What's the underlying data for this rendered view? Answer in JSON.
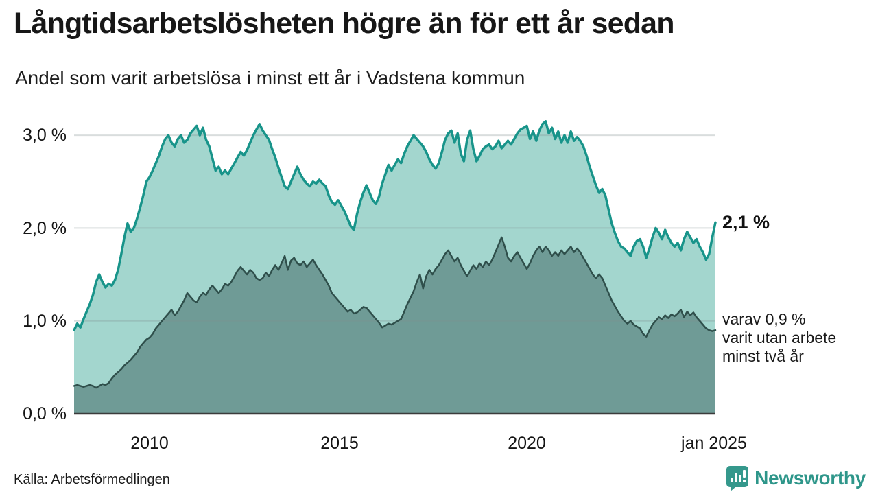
{
  "title": "Långtidsarbetslösheten högre än för ett år sedan",
  "subtitle": "Andel som varit arbetslösa i minst ett år i Vadstena kommun",
  "source": "Källa: Arbetsförmedlingen",
  "logo": {
    "text": "Newsworthy",
    "color": "#2e968a",
    "icon": "speech-bubble-bar-chart"
  },
  "annotations": {
    "end_value": "2,1 %",
    "secondary": [
      "varav 0,9 %",
      "varit utan arbete",
      "minst två år"
    ]
  },
  "colors": {
    "series1_line": "#18948a",
    "series1_fill": "#a3d6ce",
    "series2_line": "#2f4f4b",
    "series2_fill": "#6f9b96",
    "gridline": "rgba(130,142,142,0.30)",
    "axis": "#3b3b3b"
  },
  "chart_data": {
    "type": "area",
    "title": "Långtidsarbetslösheten högre än för ett år sedan",
    "subtitle": "Andel som varit arbetslösa i minst ett år i Vadstena kommun",
    "x_unit": "month",
    "x_range_years": [
      2008.0,
      2025.0833
    ],
    "x_first_month": "2008-01",
    "x_last_month": "2025-01",
    "ylim": [
      0,
      3.2
    ],
    "grid": "horizontal",
    "legend_position": "none",
    "y_ticks": [
      {
        "label": "0,0 %",
        "value": 0.0
      },
      {
        "label": "1,0 %",
        "value": 1.0
      },
      {
        "label": "2,0 %",
        "value": 2.0
      },
      {
        "label": "3,0 %",
        "value": 3.0
      }
    ],
    "x_ticks": [
      {
        "label": "2010",
        "year": 2010
      },
      {
        "label": "2015",
        "year": 2015
      },
      {
        "label": "2020",
        "year": 2020
      },
      {
        "label": "jan 2025",
        "year": 2025
      }
    ],
    "series": [
      {
        "name": "Andel arbetslösa minst ett år",
        "end_value_label": "2,1 %",
        "values": [
          0.9,
          0.97,
          0.93,
          1.02,
          1.1,
          1.18,
          1.28,
          1.42,
          1.5,
          1.42,
          1.36,
          1.4,
          1.38,
          1.44,
          1.55,
          1.72,
          1.9,
          2.05,
          1.96,
          2.0,
          2.1,
          2.22,
          2.35,
          2.5,
          2.55,
          2.62,
          2.7,
          2.78,
          2.88,
          2.96,
          3.0,
          2.92,
          2.88,
          2.96,
          3.0,
          2.92,
          2.95,
          3.02,
          3.06,
          3.1,
          3.0,
          3.08,
          2.95,
          2.88,
          2.75,
          2.62,
          2.66,
          2.58,
          2.62,
          2.58,
          2.64,
          2.7,
          2.76,
          2.82,
          2.78,
          2.84,
          2.92,
          3.0,
          3.06,
          3.12,
          3.05,
          3.0,
          2.95,
          2.85,
          2.76,
          2.65,
          2.55,
          2.45,
          2.42,
          2.5,
          2.58,
          2.66,
          2.58,
          2.52,
          2.48,
          2.45,
          2.5,
          2.48,
          2.52,
          2.48,
          2.45,
          2.35,
          2.28,
          2.25,
          2.3,
          2.24,
          2.18,
          2.1,
          2.02,
          1.98,
          2.15,
          2.28,
          2.38,
          2.46,
          2.38,
          2.3,
          2.26,
          2.34,
          2.48,
          2.58,
          2.68,
          2.62,
          2.68,
          2.74,
          2.7,
          2.8,
          2.88,
          2.94,
          3.0,
          2.96,
          2.92,
          2.88,
          2.82,
          2.74,
          2.68,
          2.64,
          2.7,
          2.82,
          2.95,
          3.02,
          3.05,
          2.92,
          3.02,
          2.8,
          2.72,
          2.95,
          3.05,
          2.85,
          2.72,
          2.78,
          2.85,
          2.88,
          2.9,
          2.85,
          2.88,
          2.94,
          2.86,
          2.9,
          2.94,
          2.9,
          2.96,
          3.02,
          3.06,
          3.08,
          3.1,
          2.96,
          3.04,
          2.94,
          3.05,
          3.12,
          3.15,
          3.02,
          3.08,
          2.96,
          3.04,
          2.92,
          3.0,
          2.92,
          3.04,
          2.94,
          2.98,
          2.94,
          2.88,
          2.78,
          2.66,
          2.56,
          2.46,
          2.38,
          2.42,
          2.35,
          2.2,
          2.05,
          1.95,
          1.86,
          1.8,
          1.78,
          1.74,
          1.7,
          1.8,
          1.86,
          1.88,
          1.8,
          1.68,
          1.78,
          1.9,
          2.0,
          1.95,
          1.88,
          1.98,
          1.9,
          1.84,
          1.8,
          1.84,
          1.76,
          1.88,
          1.96,
          1.9,
          1.84,
          1.88,
          1.8,
          1.74,
          1.66,
          1.72,
          1.9,
          2.06
        ]
      },
      {
        "name": "varav utan arbete minst två år",
        "end_value_label": "0,9 %",
        "values": [
          0.3,
          0.31,
          0.3,
          0.29,
          0.3,
          0.31,
          0.3,
          0.28,
          0.3,
          0.32,
          0.31,
          0.33,
          0.38,
          0.42,
          0.45,
          0.48,
          0.52,
          0.55,
          0.58,
          0.62,
          0.66,
          0.72,
          0.76,
          0.8,
          0.82,
          0.86,
          0.92,
          0.96,
          1.0,
          1.04,
          1.08,
          1.12,
          1.06,
          1.1,
          1.16,
          1.22,
          1.3,
          1.26,
          1.22,
          1.2,
          1.26,
          1.3,
          1.28,
          1.34,
          1.38,
          1.34,
          1.3,
          1.34,
          1.4,
          1.38,
          1.42,
          1.48,
          1.54,
          1.58,
          1.54,
          1.5,
          1.55,
          1.52,
          1.46,
          1.44,
          1.46,
          1.52,
          1.48,
          1.55,
          1.6,
          1.55,
          1.62,
          1.7,
          1.55,
          1.65,
          1.68,
          1.62,
          1.6,
          1.64,
          1.58,
          1.62,
          1.66,
          1.6,
          1.55,
          1.5,
          1.44,
          1.38,
          1.3,
          1.26,
          1.22,
          1.18,
          1.14,
          1.1,
          1.12,
          1.08,
          1.09,
          1.12,
          1.15,
          1.14,
          1.1,
          1.06,
          1.02,
          0.98,
          0.93,
          0.95,
          0.97,
          0.96,
          0.98,
          1.0,
          1.02,
          1.1,
          1.18,
          1.25,
          1.32,
          1.42,
          1.5,
          1.35,
          1.48,
          1.55,
          1.5,
          1.56,
          1.6,
          1.66,
          1.72,
          1.76,
          1.7,
          1.64,
          1.68,
          1.6,
          1.54,
          1.48,
          1.54,
          1.6,
          1.56,
          1.62,
          1.58,
          1.64,
          1.6,
          1.66,
          1.74,
          1.82,
          1.9,
          1.8,
          1.68,
          1.64,
          1.7,
          1.74,
          1.68,
          1.62,
          1.56,
          1.62,
          1.7,
          1.76,
          1.8,
          1.74,
          1.8,
          1.76,
          1.7,
          1.74,
          1.7,
          1.76,
          1.72,
          1.76,
          1.8,
          1.74,
          1.78,
          1.74,
          1.68,
          1.62,
          1.56,
          1.5,
          1.46,
          1.5,
          1.46,
          1.38,
          1.3,
          1.22,
          1.16,
          1.1,
          1.05,
          1.0,
          0.97,
          1.0,
          0.96,
          0.94,
          0.92,
          0.86,
          0.83,
          0.9,
          0.96,
          1.0,
          1.04,
          1.02,
          1.06,
          1.03,
          1.07,
          1.05,
          1.08,
          1.12,
          1.04,
          1.1,
          1.06,
          1.09,
          1.04,
          1.0,
          0.96,
          0.92,
          0.9,
          0.89,
          0.9
        ]
      }
    ]
  }
}
